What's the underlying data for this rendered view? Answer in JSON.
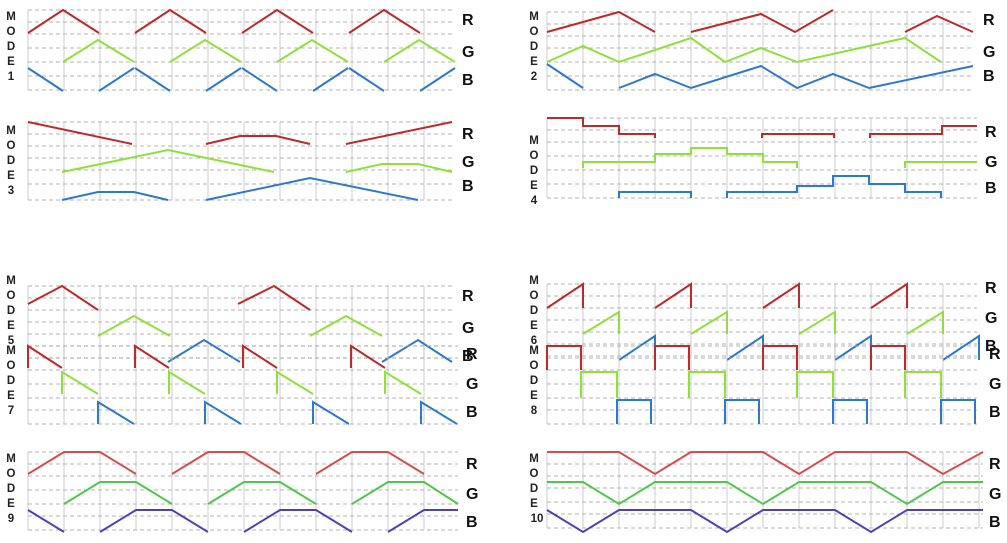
{
  "colors": {
    "R": "#c0282a",
    "G": "#8fe03a",
    "B": "#2d78d0",
    "grid": "#9a9a9a",
    "R_soft": "#dc4a4a",
    "G_soft": "#4fc84a",
    "B_soft": "#5040b8"
  },
  "mode_word": [
    "M",
    "O",
    "D",
    "E"
  ],
  "channel_labels": [
    "R",
    "G",
    "B"
  ],
  "modes": [
    {
      "id": "1",
      "number": "1"
    },
    {
      "id": "2",
      "number": "2"
    },
    {
      "id": "3",
      "number": "3"
    },
    {
      "id": "4",
      "number": "4"
    },
    {
      "id": "5",
      "number": "5"
    },
    {
      "id": "6",
      "number": "6"
    },
    {
      "id": "7",
      "number": "7"
    },
    {
      "id": "8",
      "number": "8"
    },
    {
      "id": "9",
      "number": "9"
    },
    {
      "id": "10",
      "number": "10"
    }
  ]
}
